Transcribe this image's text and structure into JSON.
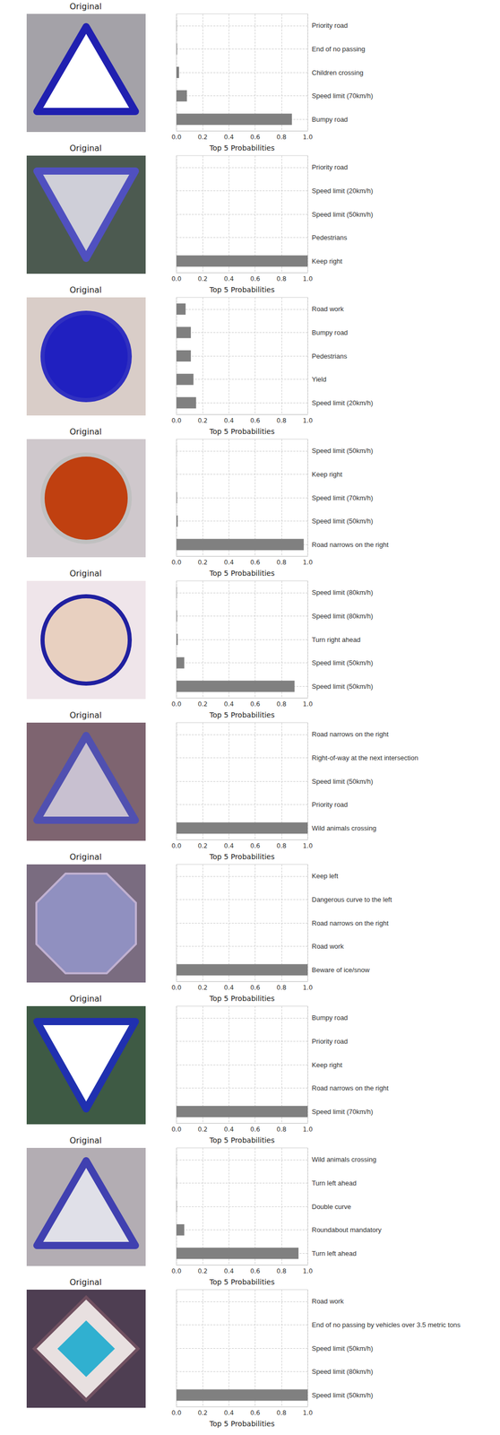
{
  "chart_data": [
    {
      "type": "bar",
      "orientation": "horizontal",
      "grid": true,
      "xlabel": "Top 5 Probabilities",
      "xlim": [
        0,
        1
      ],
      "xticks": [
        {
          "value": 0,
          "label": "0.0"
        },
        0.2,
        0.4,
        0.6,
        0.8,
        {
          "value": 1,
          "label": "1.0"
        }
      ],
      "color": "#808080",
      "categories": [
        "Bumpy road",
        "Speed limit (70km/h)",
        "Children crossing",
        "End of no passing",
        "Priority road"
      ],
      "values": [
        0.88,
        0.08,
        0.02,
        0.005,
        0.002
      ]
    },
    {
      "type": "bar",
      "orientation": "horizontal",
      "grid": true,
      "xlabel": "Top 5 Probabilities",
      "xlim": [
        0,
        1
      ],
      "xticks": [
        {
          "value": 0,
          "label": "0.0"
        },
        0.2,
        0.4,
        0.6,
        0.8,
        {
          "value": 1,
          "label": "1.0"
        }
      ],
      "color": "#808080",
      "categories": [
        "Keep right",
        "Pedestrians",
        "Speed limit (50km/h)",
        "Speed limit (20km/h)",
        "Priority road"
      ],
      "values": [
        1.0,
        0.0,
        0.0,
        0.0,
        0.0
      ]
    },
    {
      "type": "bar",
      "orientation": "horizontal",
      "grid": true,
      "xlabel": "Top 5 Probabilities",
      "xlim": [
        0,
        1
      ],
      "xticks": [
        {
          "value": 0,
          "label": "0.0"
        },
        0.2,
        0.4,
        0.6,
        0.8,
        {
          "value": 1,
          "label": "1.0"
        }
      ],
      "color": "#808080",
      "categories": [
        "Speed limit (20km/h)",
        "Yield",
        "Pedestrians",
        "Bumpy road",
        "Road work"
      ],
      "values": [
        0.15,
        0.13,
        0.11,
        0.11,
        0.07
      ]
    },
    {
      "type": "bar",
      "orientation": "horizontal",
      "grid": true,
      "xlabel": "Top 5 Probabilities",
      "xlim": [
        0,
        1
      ],
      "xticks": [
        {
          "value": 0,
          "label": "0.0"
        },
        0.2,
        0.4,
        0.6,
        0.8,
        {
          "value": 1,
          "label": "1.0"
        }
      ],
      "color": "#808080",
      "categories": [
        "Road narrows on the right",
        "Speed limit (50km/h)",
        "Speed limit (70km/h)",
        "Keep right",
        "Speed limit (50km/h)"
      ],
      "values": [
        0.97,
        0.01,
        0.005,
        0.001,
        0.001
      ]
    },
    {
      "type": "bar",
      "orientation": "horizontal",
      "grid": true,
      "xlabel": "Top 5 Probabilities",
      "xlim": [
        0,
        1
      ],
      "xticks": [
        {
          "value": 0,
          "label": "0.0"
        },
        0.2,
        0.4,
        0.6,
        0.8,
        {
          "value": 1,
          "label": "1.0"
        }
      ],
      "color": "#808080",
      "categories": [
        "Speed limit (50km/h)",
        "Speed limit (50km/h)",
        "Turn right ahead",
        "Speed limit (80km/h)",
        "Speed limit (80km/h)"
      ],
      "values": [
        0.9,
        0.06,
        0.01,
        0.005,
        0.003
      ]
    },
    {
      "type": "bar",
      "orientation": "horizontal",
      "grid": true,
      "xlabel": "Top 5 Probabilities",
      "xlim": [
        0,
        1
      ],
      "xticks": [
        {
          "value": 0,
          "label": "0.0"
        },
        0.2,
        0.4,
        0.6,
        0.8,
        {
          "value": 1,
          "label": "1.0"
        }
      ],
      "color": "#808080",
      "categories": [
        "Wild animals crossing",
        "Priority road",
        "Speed limit (50km/h)",
        "Right-of-way at the next intersection",
        "Road narrows on the right"
      ],
      "values": [
        1.0,
        0.0,
        0.0,
        0.0,
        0.0
      ]
    },
    {
      "type": "bar",
      "orientation": "horizontal",
      "grid": true,
      "xlabel": "Top 5 Probabilities",
      "xlim": [
        0,
        1
      ],
      "xticks": [
        {
          "value": 0,
          "label": "0.0"
        },
        0.2,
        0.4,
        0.6,
        0.8,
        {
          "value": 1,
          "label": "1.0"
        }
      ],
      "color": "#808080",
      "categories": [
        "Beware of ice/snow",
        "Road work",
        "Road narrows on the right",
        "Dangerous curve to the left",
        "Keep left"
      ],
      "values": [
        1.0,
        0.0,
        0.0,
        0.0,
        0.0
      ]
    },
    {
      "type": "bar",
      "orientation": "horizontal",
      "grid": true,
      "xlabel": "Top 5 Probabilities",
      "xlim": [
        0,
        1
      ],
      "xticks": [
        {
          "value": 0,
          "label": "0.0"
        },
        0.2,
        0.4,
        0.6,
        0.8,
        {
          "value": 1,
          "label": "1.0"
        }
      ],
      "color": "#808080",
      "categories": [
        "Speed limit (70km/h)",
        "Road narrows on the right",
        "Keep right",
        "Priority road",
        "Bumpy road"
      ],
      "values": [
        1.0,
        0.0,
        0.0,
        0.0,
        0.0
      ]
    },
    {
      "type": "bar",
      "orientation": "horizontal",
      "grid": true,
      "xlabel": "Top 5 Probabilities",
      "xlim": [
        0,
        1
      ],
      "xticks": [
        {
          "value": 0,
          "label": "0.0"
        },
        0.2,
        0.4,
        0.6,
        0.8,
        {
          "value": 1,
          "label": "1.0"
        }
      ],
      "color": "#808080",
      "categories": [
        "Turn left ahead",
        "Roundabout mandatory",
        "Double curve",
        "Turn left ahead",
        "Wild animals crossing"
      ],
      "values": [
        0.93,
        0.06,
        0.003,
        0.002,
        0.001
      ]
    },
    {
      "type": "bar",
      "orientation": "horizontal",
      "grid": true,
      "xlabel": "Top 5 Probabilities",
      "xlim": [
        0,
        1
      ],
      "xticks": [
        {
          "value": 0,
          "label": "0.0"
        },
        0.2,
        0.4,
        0.6,
        0.8,
        {
          "value": 1,
          "label": "1.0"
        }
      ],
      "color": "#808080",
      "categories": [
        "Speed limit (50km/h)",
        "Speed limit (80km/h)",
        "Speed limit (50km/h)",
        "End of no passing by vehicles over 3.5 metric tons",
        "Road work"
      ],
      "values": [
        1.0,
        0.0,
        0.0,
        0.0,
        0.0
      ]
    }
  ],
  "images": [
    {
      "title": "Original"
    },
    {
      "title": "Original"
    },
    {
      "title": "Original"
    },
    {
      "title": "Original"
    },
    {
      "title": "Original"
    },
    {
      "title": "Original"
    },
    {
      "title": "Original"
    },
    {
      "title": "Original"
    },
    {
      "title": "Original"
    },
    {
      "title": "Original"
    }
  ]
}
